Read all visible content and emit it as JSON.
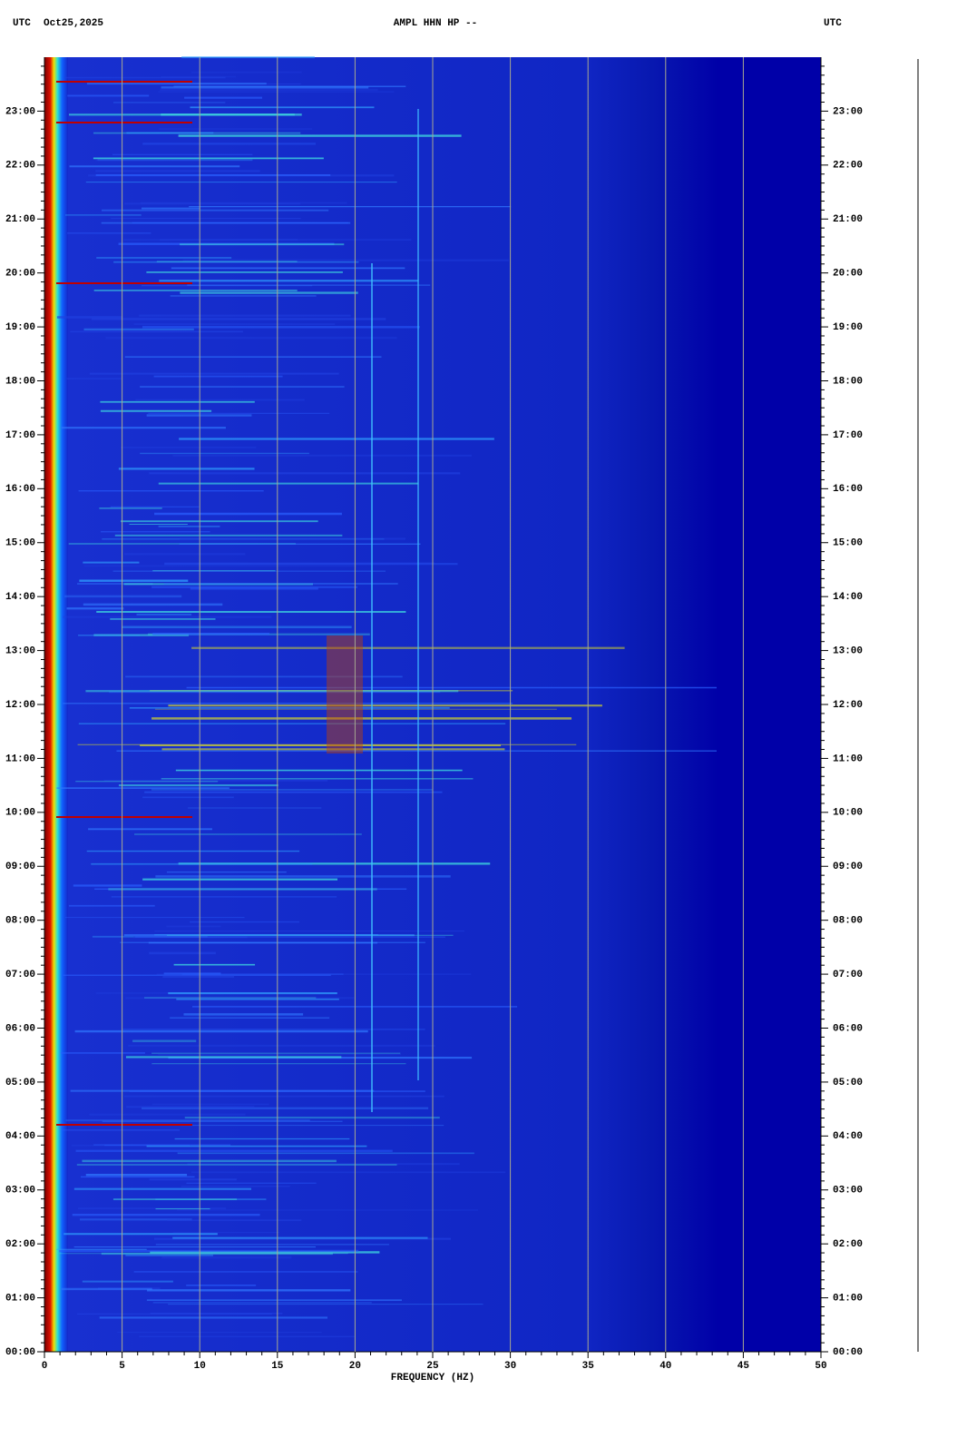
{
  "header": {
    "left_zone": "UTC",
    "date": "Oct25,2025",
    "title": "AMPL HHN HP --",
    "right_zone": "UTC"
  },
  "chart_data": {
    "type": "spectrogram",
    "xlabel": "FREQUENCY (HZ)",
    "xlim": [
      0,
      50
    ],
    "xticks": [
      0,
      5,
      10,
      15,
      20,
      25,
      30,
      35,
      40,
      45,
      50
    ],
    "ylim": [
      0,
      24
    ],
    "yticks": [
      {
        "value": 0,
        "label": "00:00"
      },
      {
        "value": 1,
        "label": "01:00"
      },
      {
        "value": 2,
        "label": "02:00"
      },
      {
        "value": 3,
        "label": "03:00"
      },
      {
        "value": 4,
        "label": "04:00"
      },
      {
        "value": 5,
        "label": "05:00"
      },
      {
        "value": 6,
        "label": "06:00"
      },
      {
        "value": 7,
        "label": "07:00"
      },
      {
        "value": 8,
        "label": "08:00"
      },
      {
        "value": 9,
        "label": "09:00"
      },
      {
        "value": 10,
        "label": "10:00"
      },
      {
        "value": 11,
        "label": "11:00"
      },
      {
        "value": 12,
        "label": "12:00"
      },
      {
        "value": 13,
        "label": "13:00"
      },
      {
        "value": 14,
        "label": "14:00"
      },
      {
        "value": 15,
        "label": "15:00"
      },
      {
        "value": 16,
        "label": "16:00"
      },
      {
        "value": 17,
        "label": "17:00"
      },
      {
        "value": 18,
        "label": "18:00"
      },
      {
        "value": 19,
        "label": "19:00"
      },
      {
        "value": 20,
        "label": "20:00"
      },
      {
        "value": 21,
        "label": "21:00"
      },
      {
        "value": 22,
        "label": "22:00"
      },
      {
        "value": 23,
        "label": "23:00"
      }
    ],
    "grid": true
  }
}
